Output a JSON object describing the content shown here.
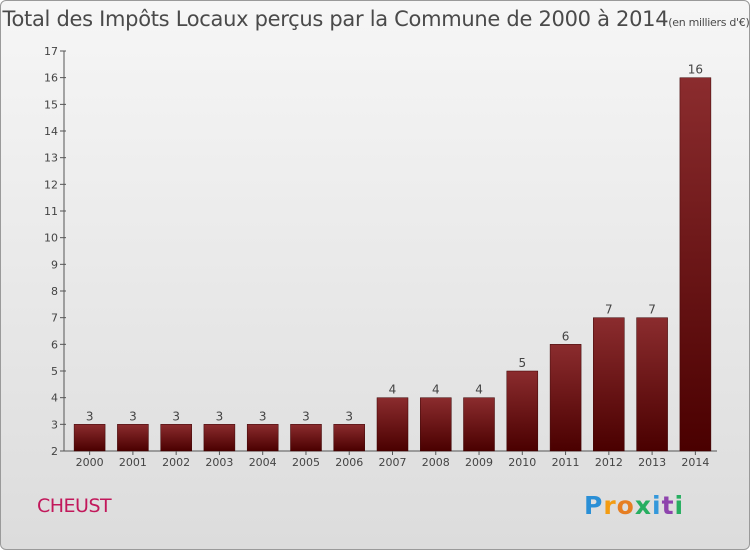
{
  "title": {
    "main": "Total des Impôts Locaux perçus par la Commune de 2000 à 2014",
    "unit": "(en milliers d'€)"
  },
  "commune": "CHEUST",
  "logo": {
    "letters": [
      {
        "ch": "P",
        "color": "#2a8fd6"
      },
      {
        "ch": "r",
        "color": "#f39c12"
      },
      {
        "ch": "o",
        "color": "#e67e22"
      },
      {
        "ch": "x",
        "color": "#27ae60"
      },
      {
        "ch": "i",
        "color": "#3498db"
      },
      {
        "ch": "t",
        "color": "#8e44ad"
      },
      {
        "ch": "i",
        "color": "#27ae60"
      }
    ]
  },
  "chart_data": {
    "type": "bar",
    "title": "Total des Impôts Locaux perçus par la Commune de 2000 à 2014",
    "ylabel": "en milliers d'€",
    "xlabel": "",
    "categories": [
      "2000",
      "2001",
      "2002",
      "2003",
      "2004",
      "2005",
      "2006",
      "2007",
      "2008",
      "2009",
      "2010",
      "2011",
      "2012",
      "2013",
      "2014"
    ],
    "values": [
      3,
      3,
      3,
      3,
      3,
      3,
      3,
      4,
      4,
      4,
      5,
      6,
      7,
      7,
      16
    ],
    "ylim": [
      2,
      17
    ],
    "yticks": [
      2,
      3,
      4,
      5,
      6,
      7,
      8,
      9,
      10,
      11,
      12,
      13,
      14,
      15,
      16,
      17
    ],
    "grid": false,
    "bar_color_top": "#8b2c2e",
    "bar_color_bottom": "#4a0000"
  }
}
